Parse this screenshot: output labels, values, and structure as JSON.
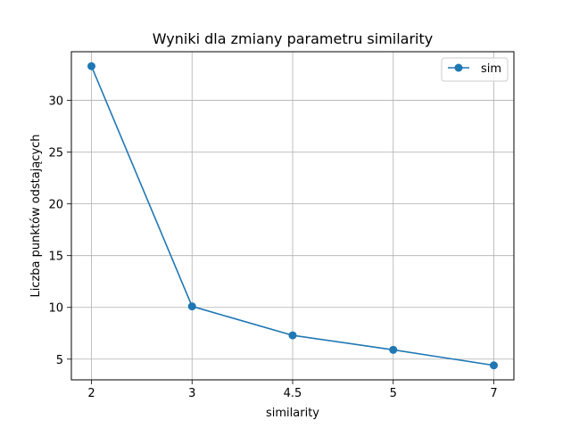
{
  "chart_data": {
    "type": "line",
    "title": "Wyniki dla zmiany parametru similarity",
    "xlabel": "similarity",
    "ylabel": "Liczba punktów odstających",
    "categories": [
      "2",
      "3",
      "4.5",
      "5",
      "7"
    ],
    "series": [
      {
        "name": "sim",
        "values": [
          33.3,
          10.1,
          7.3,
          5.9,
          4.4
        ],
        "color": "#1f77b4"
      }
    ],
    "ylim": [
      3.0,
      34.7
    ],
    "yticks": [
      5,
      10,
      15,
      20,
      25,
      30
    ],
    "grid": true,
    "legend_position": "upper right",
    "marker": "circle"
  }
}
